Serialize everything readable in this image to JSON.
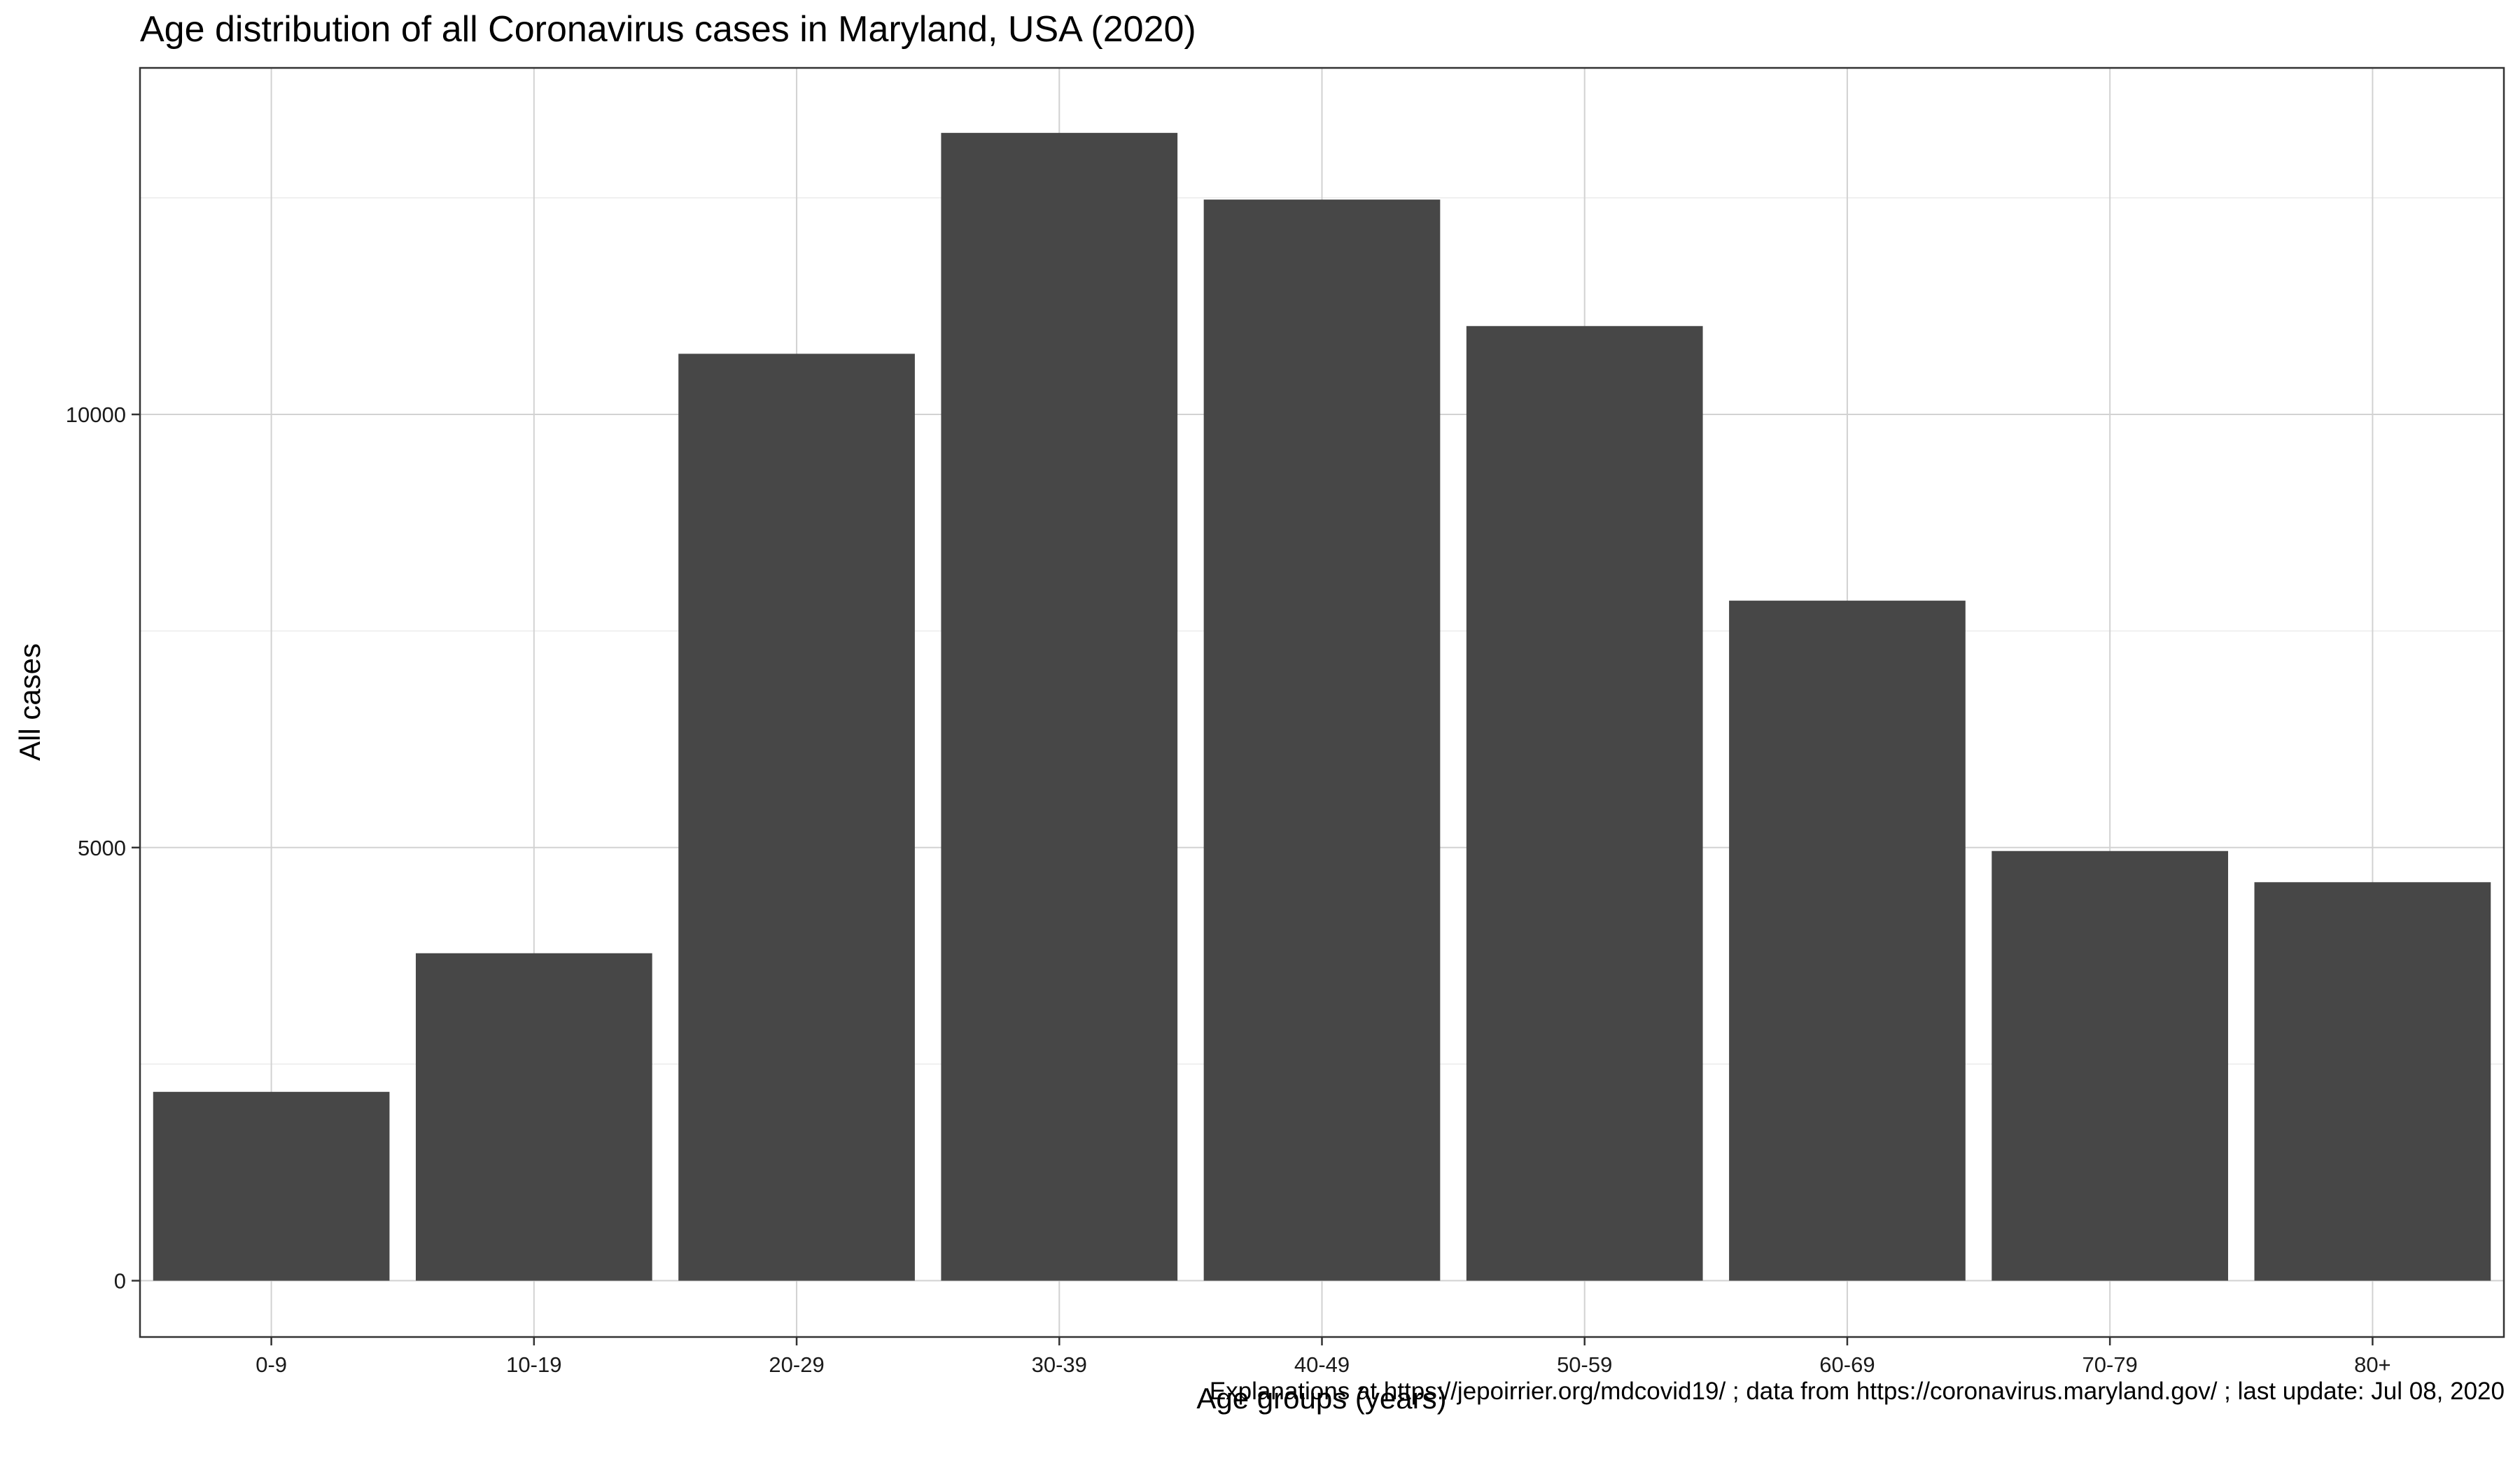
{
  "chart_data": {
    "type": "bar",
    "title": "Age distribution of all Coronavirus cases in Maryland, USA (2020)",
    "xlabel": "Age groups (years)",
    "ylabel": "All cases",
    "categories": [
      "0-9",
      "10-19",
      "20-29",
      "30-39",
      "40-49",
      "50-59",
      "60-69",
      "70-79",
      "80+"
    ],
    "values": [
      2180,
      3780,
      10700,
      13250,
      12480,
      11020,
      7850,
      4960,
      4600
    ],
    "ylim": [
      -650,
      14000
    ],
    "yticks": [
      0,
      5000,
      10000
    ],
    "ytick_labels": [
      "0",
      "5000",
      "10000"
    ],
    "grid": true,
    "caption": "Explanations at https://jepoirrier.org/mdcovid19/ ; data from https://coronavirus.maryland.gov/ ; last update: Jul 08, 2020",
    "colors": {
      "bar": "#474747",
      "grid_major": "#d2d2d2",
      "grid_minor": "#ebebeb",
      "panel_border": "#333333"
    }
  }
}
